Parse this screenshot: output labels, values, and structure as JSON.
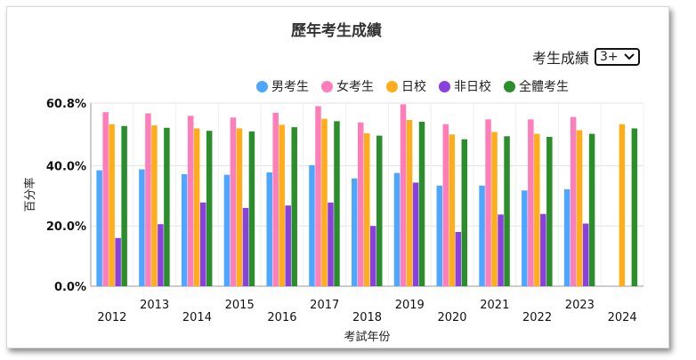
{
  "title": "歷年考生成績",
  "control": {
    "label": "考生成績",
    "selected": "3+"
  },
  "chart_data": {
    "type": "bar",
    "title": "歷年考生成績",
    "xlabel": "考試年份",
    "ylabel": "百分率",
    "ylim": [
      0,
      60.8
    ],
    "y_ticks": [
      "0.0%",
      "20.0%",
      "40.0%",
      "60.8%"
    ],
    "grid": true,
    "legend_position": "top-right",
    "categories": [
      "2012",
      "2013",
      "2014",
      "2015",
      "2016",
      "2017",
      "2018",
      "2019",
      "2020",
      "2021",
      "2022",
      "2023",
      "2024"
    ],
    "series": [
      {
        "name": "男考生",
        "color": "#4da6ff",
        "values": [
          38.5,
          38.8,
          37.2,
          37.0,
          37.8,
          40.2,
          35.8,
          37.6,
          33.4,
          33.4,
          31.8,
          32.2,
          null
        ]
      },
      {
        "name": "女考生",
        "color": "#ff7eb9",
        "values": [
          57.8,
          57.4,
          56.6,
          56.0,
          57.6,
          59.8,
          54.4,
          60.4,
          53.8,
          55.4,
          55.4,
          56.2,
          null
        ]
      },
      {
        "name": "日校",
        "color": "#ffae1a",
        "values": [
          53.8,
          53.4,
          52.4,
          52.4,
          53.6,
          55.6,
          50.8,
          55.2,
          50.4,
          51.2,
          50.6,
          51.8,
          53.8
        ]
      },
      {
        "name": "非日校",
        "color": "#8a3fe0",
        "values": [
          16.0,
          20.6,
          27.8,
          26.0,
          26.8,
          27.8,
          20.0,
          34.4,
          18.0,
          23.8,
          24.0,
          20.8,
          null
        ]
      },
      {
        "name": "全體考生",
        "color": "#2a8f2a",
        "values": [
          53.2,
          52.6,
          51.6,
          51.4,
          52.8,
          54.8,
          50.0,
          54.6,
          48.8,
          49.8,
          49.6,
          50.6,
          52.4
        ]
      }
    ]
  }
}
